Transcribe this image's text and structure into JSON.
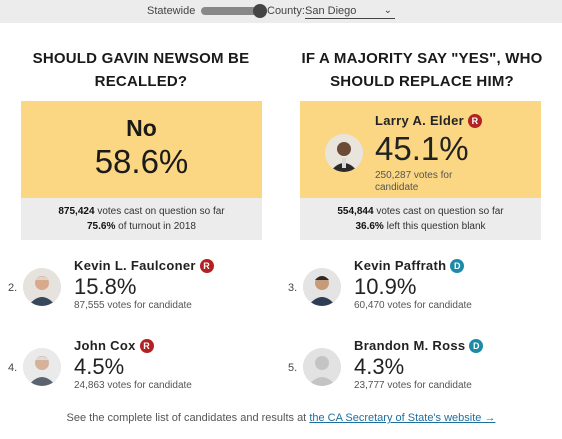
{
  "controls": {
    "statewide_label": "Statewide",
    "county_label": "County:",
    "county_value": "San Diego",
    "county_chevron": "⌄"
  },
  "recall": {
    "heading_line1": "SHOULD GAVIN NEWSOM BE",
    "heading_line2": "RECALLED?",
    "result_label": "No",
    "result_pct": "58.6%",
    "votes_count": "875,424",
    "votes_text": "votes cast on question so far",
    "turnout_pct": "75.6%",
    "turnout_text": "of turnout in 2018"
  },
  "replace": {
    "heading_line1": "IF A MAJORITY SAY \"YES\", WHO",
    "heading_line2": "SHOULD REPLACE HIM?",
    "votes_count": "554,844",
    "votes_text": "votes cast on question so far",
    "blank_pct": "36.6%",
    "blank_text": "left this question blank",
    "leader": {
      "name": "Larry A. Elder",
      "party": "R",
      "pct": "45.1%",
      "votes": "250,287 votes for candidate"
    },
    "candidates": [
      {
        "rank": "2.",
        "name": "Kevin L. Faulconer",
        "party": "R",
        "pct": "15.8%",
        "votes": "87,555 votes for candidate"
      },
      {
        "rank": "3.",
        "name": "Kevin Paffrath",
        "party": "D",
        "pct": "10.9%",
        "votes": "60,470 votes for candidate"
      },
      {
        "rank": "4.",
        "name": "John Cox",
        "party": "R",
        "pct": "4.5%",
        "votes": "24,863 votes for candidate"
      },
      {
        "rank": "5.",
        "name": "Brandon M. Ross",
        "party": "D",
        "pct": "4.3%",
        "votes": "23,777 votes for candidate"
      }
    ]
  },
  "footer": {
    "text": "See the complete list of candidates and results at ",
    "link_text": "the CA Secretary of State's website →"
  },
  "colors": {
    "highlight": "#fbd784",
    "republican": "#b22222",
    "democrat": "#1d8aa8",
    "link": "#1d6fa0"
  }
}
